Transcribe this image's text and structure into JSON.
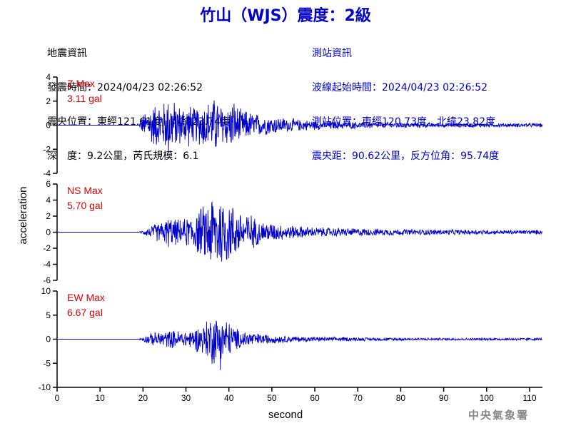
{
  "title": "竹山（WJS）震度：2級",
  "earthquake_info": {
    "heading": "地震資訊",
    "origin_time": "發震時間：2024/04/23 02:26:52",
    "epicenter": "震央位置：東經121.61度，北緯23.74度",
    "depth_magnitude": "深　度：9.2公里，芮氏規模：6.1"
  },
  "station_info": {
    "heading": "測站資訊",
    "wave_start": "波線起始時間：2024/04/23 02:26:52",
    "station_location": "測站位置：東經120.73度，北緯23.82度",
    "distance": "震央距：90.62公里，反方位角：95.74度"
  },
  "footer": "中央氣象署",
  "colors": {
    "title": "#0000cc",
    "trace": "#0000cc",
    "max_label": "#dd0000",
    "station_info": "#0000cc"
  },
  "chart_data": {
    "type": "line",
    "xlabel": "second",
    "ylabel": "acceleration",
    "xlim": [
      0,
      113
    ],
    "xticks": [
      0,
      10,
      20,
      30,
      40,
      50,
      60,
      70,
      80,
      90,
      100,
      110
    ],
    "channels": [
      {
        "name": "Z",
        "max_title": "Z Max",
        "max_value": "3.11 gal",
        "ylim": [
          -4,
          4
        ],
        "yticks": [
          4,
          2,
          0,
          -2,
          -4
        ],
        "times": [
          0,
          19,
          20,
          21,
          22,
          23,
          24,
          25,
          26,
          27,
          28,
          29,
          30,
          31,
          32,
          33,
          34,
          35,
          36,
          37,
          38,
          39,
          40,
          41,
          42,
          43,
          44,
          45,
          46,
          47,
          48,
          49,
          50,
          51,
          52,
          53,
          54,
          55,
          56,
          57,
          58,
          59,
          60,
          62,
          64,
          66,
          68,
          70,
          72,
          74,
          76,
          78,
          80,
          82,
          84,
          86,
          88,
          90,
          92,
          94,
          96,
          98,
          100,
          102,
          104,
          106,
          108,
          110,
          112,
          113
        ],
        "envelope": [
          0,
          0,
          1.0,
          1.5,
          1.8,
          2.0,
          2.1,
          2.2,
          3.1,
          2.3,
          2.0,
          1.8,
          2.0,
          1.9,
          1.6,
          1.8,
          2.0,
          2.2,
          2.3,
          2.7,
          1.9,
          2.0,
          1.8,
          2.4,
          1.8,
          1.3,
          1.4,
          1.2,
          1.1,
          1.0,
          0.9,
          0.9,
          0.8,
          0.8,
          0.7,
          0.7,
          0.6,
          0.6,
          0.55,
          0.5,
          0.5,
          0.45,
          0.45,
          0.4,
          0.4,
          0.35,
          0.35,
          0.3,
          0.3,
          0.3,
          0.28,
          0.25,
          0.25,
          0.25,
          0.22,
          0.22,
          0.2,
          0.2,
          0.2,
          0.2,
          0.2,
          0.18,
          0.18,
          0.18,
          0.18,
          0.18,
          0.18,
          0.18,
          0.18,
          0.18
        ]
      },
      {
        "name": "NS",
        "max_title": "NS Max",
        "max_value": "5.70 gal",
        "ylim": [
          -6,
          6
        ],
        "yticks": [
          6,
          4,
          2,
          0,
          -2,
          -4,
          -6
        ],
        "times": [
          0,
          19,
          20,
          21,
          22,
          23,
          24,
          25,
          26,
          27,
          28,
          29,
          30,
          31,
          32,
          33,
          34,
          35,
          36,
          37,
          38,
          39,
          40,
          41,
          42,
          43,
          44,
          45,
          46,
          47,
          48,
          49,
          50,
          51,
          52,
          53,
          54,
          55,
          56,
          57,
          58,
          59,
          60,
          62,
          64,
          66,
          68,
          70,
          72,
          74,
          76,
          78,
          80,
          82,
          84,
          86,
          88,
          90,
          92,
          94,
          96,
          98,
          100,
          102,
          104,
          106,
          108,
          110,
          112,
          113
        ],
        "envelope": [
          0,
          0,
          0.3,
          0.6,
          0.9,
          1.2,
          1.4,
          1.6,
          2.2,
          1.8,
          1.8,
          1.6,
          2.0,
          2.2,
          2.6,
          3.2,
          3.6,
          4.2,
          5.7,
          5.0,
          5.4,
          4.6,
          4.4,
          3.8,
          3.2,
          2.8,
          2.8,
          2.6,
          2.0,
          1.6,
          1.5,
          1.4,
          1.3,
          1.2,
          1.1,
          1.0,
          1.0,
          0.9,
          0.9,
          0.8,
          0.8,
          0.7,
          0.7,
          0.65,
          0.6,
          0.6,
          0.55,
          0.55,
          0.5,
          0.5,
          0.45,
          0.45,
          0.45,
          0.4,
          0.4,
          0.4,
          0.4,
          0.38,
          0.38,
          0.35,
          0.35,
          0.35,
          0.3,
          0.3,
          0.3,
          0.3,
          0.3,
          0.3,
          0.3,
          0.3
        ]
      },
      {
        "name": "EW",
        "max_title": "EW Max",
        "max_value": "6.67 gal",
        "ylim": [
          -10,
          10
        ],
        "yticks": [
          10,
          5,
          0,
          -5,
          -10
        ],
        "times": [
          0,
          19,
          20,
          21,
          22,
          23,
          24,
          25,
          26,
          27,
          28,
          29,
          30,
          31,
          32,
          33,
          34,
          35,
          36,
          37,
          38,
          39,
          40,
          41,
          42,
          43,
          44,
          45,
          46,
          47,
          48,
          49,
          50,
          51,
          52,
          53,
          54,
          55,
          56,
          57,
          58,
          59,
          60,
          62,
          64,
          66,
          68,
          70,
          72,
          74,
          76,
          78,
          80,
          82,
          84,
          86,
          88,
          90,
          92,
          94,
          96,
          98,
          100,
          102,
          104,
          106,
          108,
          110,
          112,
          113
        ],
        "envelope": [
          0,
          0,
          0.6,
          1.0,
          1.4,
          1.6,
          1.8,
          1.9,
          2.0,
          2.0,
          2.0,
          1.9,
          2.0,
          2.2,
          2.6,
          3.0,
          3.6,
          4.6,
          6.0,
          5.5,
          6.67,
          5.0,
          4.2,
          3.0,
          2.4,
          2.0,
          1.9,
          1.7,
          1.5,
          1.3,
          1.2,
          1.1,
          1.0,
          0.9,
          0.9,
          0.8,
          0.8,
          0.7,
          0.7,
          0.6,
          0.6,
          0.55,
          0.55,
          0.5,
          0.5,
          0.45,
          0.45,
          0.4,
          0.4,
          0.4,
          0.35,
          0.35,
          0.35,
          0.32,
          0.3,
          0.3,
          0.3,
          0.3,
          0.3,
          0.28,
          0.28,
          0.28,
          0.28,
          0.28,
          0.28,
          0.28,
          0.28,
          0.28,
          0.28,
          0.28
        ]
      }
    ]
  }
}
